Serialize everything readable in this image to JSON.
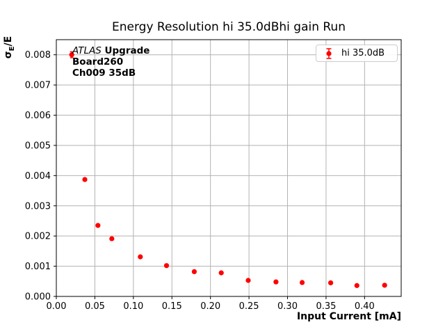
{
  "chart_data": {
    "type": "scatter",
    "title": "Energy Resolution hi 35.0dBhi gain Run",
    "xlabel": "Input Current [mA]",
    "ylabel": "σE/E",
    "xlim": [
      0,
      0.4475
    ],
    "ylim": [
      0,
      0.0085
    ],
    "grid": true,
    "legend_position": "upper right",
    "xticks": [
      0.0,
      0.05,
      0.1,
      0.15,
      0.2,
      0.25,
      0.3,
      0.35,
      0.4
    ],
    "xtick_labels": [
      "0.00",
      "0.05",
      "0.10",
      "0.15",
      "0.20",
      "0.25",
      "0.30",
      "0.35",
      "0.40"
    ],
    "yticks": [
      0.0,
      0.001,
      0.002,
      0.003,
      0.004,
      0.005,
      0.006,
      0.007,
      0.008
    ],
    "ytick_labels": [
      "0.000",
      "0.001",
      "0.002",
      "0.003",
      "0.004",
      "0.005",
      "0.006",
      "0.007",
      "0.008"
    ],
    "series": [
      {
        "name": "hi 35.0dB",
        "color": "#ff0000",
        "marker": "circle-with-errorbar",
        "x": [
          0.02,
          0.037,
          0.054,
          0.072,
          0.109,
          0.143,
          0.179,
          0.214,
          0.249,
          0.285,
          0.319,
          0.356,
          0.39,
          0.426
        ],
        "y": [
          0.008,
          0.00387,
          0.00235,
          0.00191,
          0.00131,
          0.00102,
          0.00082,
          0.00078,
          0.00053,
          0.00048,
          0.00046,
          0.00045,
          0.00036,
          0.00037
        ],
        "yerr": [
          0.0001,
          5e-05,
          4e-05,
          3e-05,
          3e-05,
          2e-05,
          2e-05,
          2e-05,
          2e-05,
          2e-05,
          2e-05,
          2e-05,
          2e-05,
          2e-05
        ]
      }
    ]
  },
  "labels": {
    "ylabel_sigma": "σ",
    "ylabel_sub": "E",
    "ylabel_rest": "/E"
  },
  "annotation": {
    "line1_italic": "ATLAS",
    "line1_bold": " Upgrade",
    "line2": "Board260",
    "line3": "Ch009 35dB"
  },
  "legend": {
    "label": "hi 35.0dB"
  },
  "style": {
    "marker_color": "#ff0000",
    "grid_color": "#b2b2b2",
    "axis_color": "#000000",
    "tick_text_color": "#000000",
    "legend_border": "#cccccc",
    "background": "#ffffff"
  }
}
